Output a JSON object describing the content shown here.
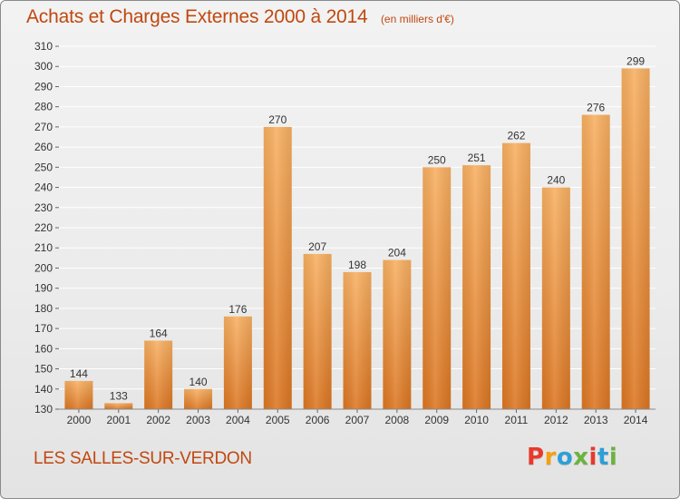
{
  "header": {
    "title": "Achats et Charges Externes 2000 à 2014",
    "subtitle": "(en milliers d'€)"
  },
  "footer": {
    "location": "LES SALLES-SUR-VERDON",
    "logo_text": "Proxiti",
    "logo_colors": [
      "#e8392b",
      "#f3a013",
      "#2d9fd8",
      "#6cb33f",
      "#e8392b",
      "#2d9fd8",
      "#6cb33f"
    ]
  },
  "colors": {
    "title": "#c0480f",
    "bar_light": "#f6a95a",
    "bar_dark": "#de7a24",
    "grid": "#ffffff",
    "axis_text": "#333333"
  },
  "chart_data": {
    "type": "bar",
    "title": "Achats et Charges Externes 2000 à 2014",
    "subtitle": "(en milliers d'€)",
    "categories": [
      "2000",
      "2001",
      "2002",
      "2003",
      "2004",
      "2005",
      "2006",
      "2007",
      "2008",
      "2009",
      "2010",
      "2011",
      "2012",
      "2013",
      "2014"
    ],
    "values": [
      144,
      133,
      164,
      140,
      176,
      270,
      207,
      198,
      204,
      250,
      251,
      262,
      240,
      276,
      299
    ],
    "data_labels": [
      "144",
      "133",
      "164",
      "140",
      "176",
      "270",
      "207",
      "198",
      "204",
      "250",
      "251",
      "262",
      "240",
      "276",
      "299"
    ],
    "yticks": [
      "130",
      "140",
      "150",
      "160",
      "170",
      "180",
      "190",
      "200",
      "210",
      "220",
      "230",
      "240",
      "250",
      "260",
      "270",
      "280",
      "290",
      "300",
      "310"
    ],
    "ylim": [
      130,
      310
    ],
    "grid": true,
    "legend": "none",
    "xlabel": "",
    "ylabel": ""
  }
}
